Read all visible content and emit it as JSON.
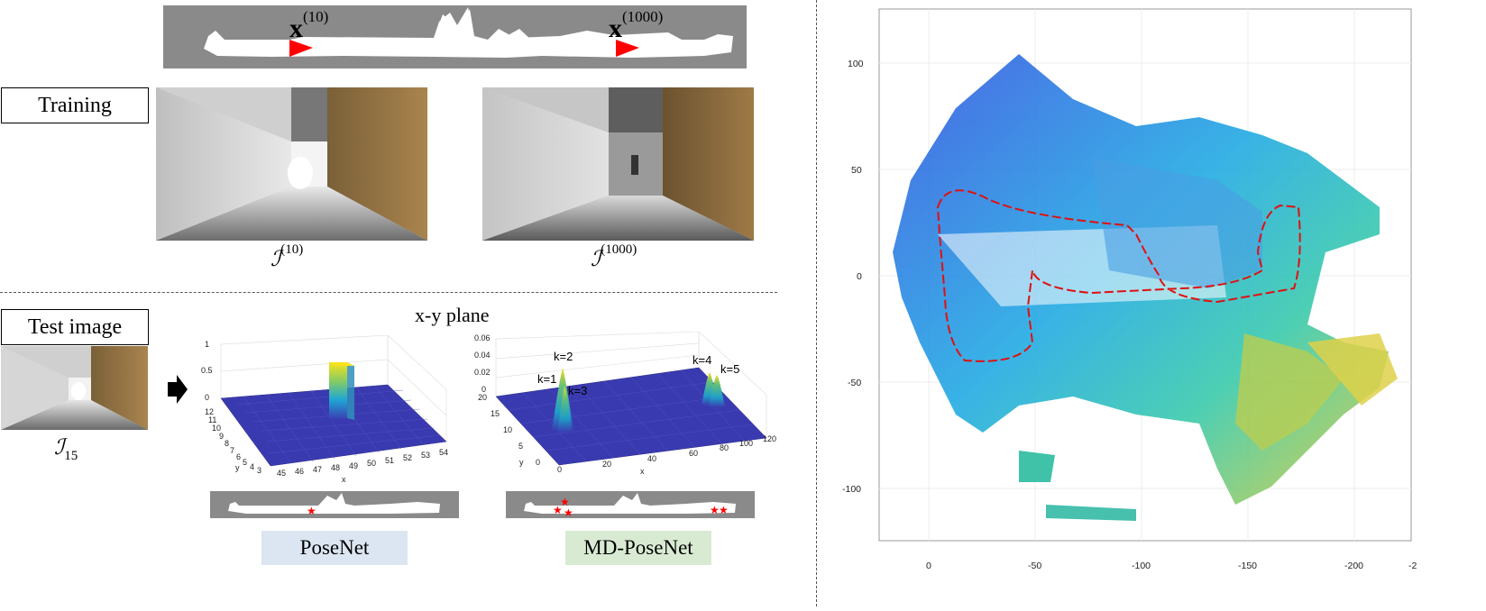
{
  "top_map": {
    "marker_a": "x",
    "marker_a_sup": "(10)",
    "marker_b": "x",
    "marker_b_sup": "(1000)"
  },
  "training": {
    "label": "Training",
    "caption_a": "ℐ",
    "caption_a_sup": "(10)",
    "caption_b": "ℐ",
    "caption_b_sup": "(1000)"
  },
  "test": {
    "label": "Test image",
    "caption": "ℐ",
    "caption_sub": "15"
  },
  "plot_title": "x-y plane",
  "posenet_plot": {
    "z_ticks": [
      "1",
      "0.5",
      "0"
    ],
    "y_ticks": [
      "12",
      "11",
      "10",
      "9",
      "8",
      "7",
      "6",
      "5",
      "4",
      "3"
    ],
    "x_ticks": [
      "45",
      "46",
      "47",
      "48",
      "49",
      "50",
      "51",
      "52",
      "53",
      "54"
    ],
    "x_label": "x",
    "y_label": "y"
  },
  "mdposenet_plot": {
    "z_ticks": [
      "0.06",
      "0.04",
      "0.02",
      "0"
    ],
    "y_ticks": [
      "20",
      "15",
      "10",
      "5",
      "0"
    ],
    "x_ticks": [
      "0",
      "20",
      "40",
      "60",
      "80",
      "100",
      "120"
    ],
    "x_label": "x",
    "y_label": "y",
    "k_labels": [
      "k=1",
      "k=2",
      "k=3",
      "k=4",
      "k=5"
    ]
  },
  "methods": {
    "posenet": "PoseNet",
    "mdposenet": "MD-PoseNet"
  },
  "colors": {
    "posenet_bg": "#dce6f2",
    "mdposenet_bg": "#d9ead3",
    "strip_gray": "#8a8a8a",
    "marker_red": "#ff0000",
    "surface_blue": "#3a3ab0"
  },
  "pointcloud": {
    "y_ticks": [
      "100",
      "50",
      "0",
      "-50",
      "-100"
    ],
    "x_ticks": [
      "0",
      "-50",
      "-100",
      "-150",
      "-200",
      "-2"
    ]
  }
}
